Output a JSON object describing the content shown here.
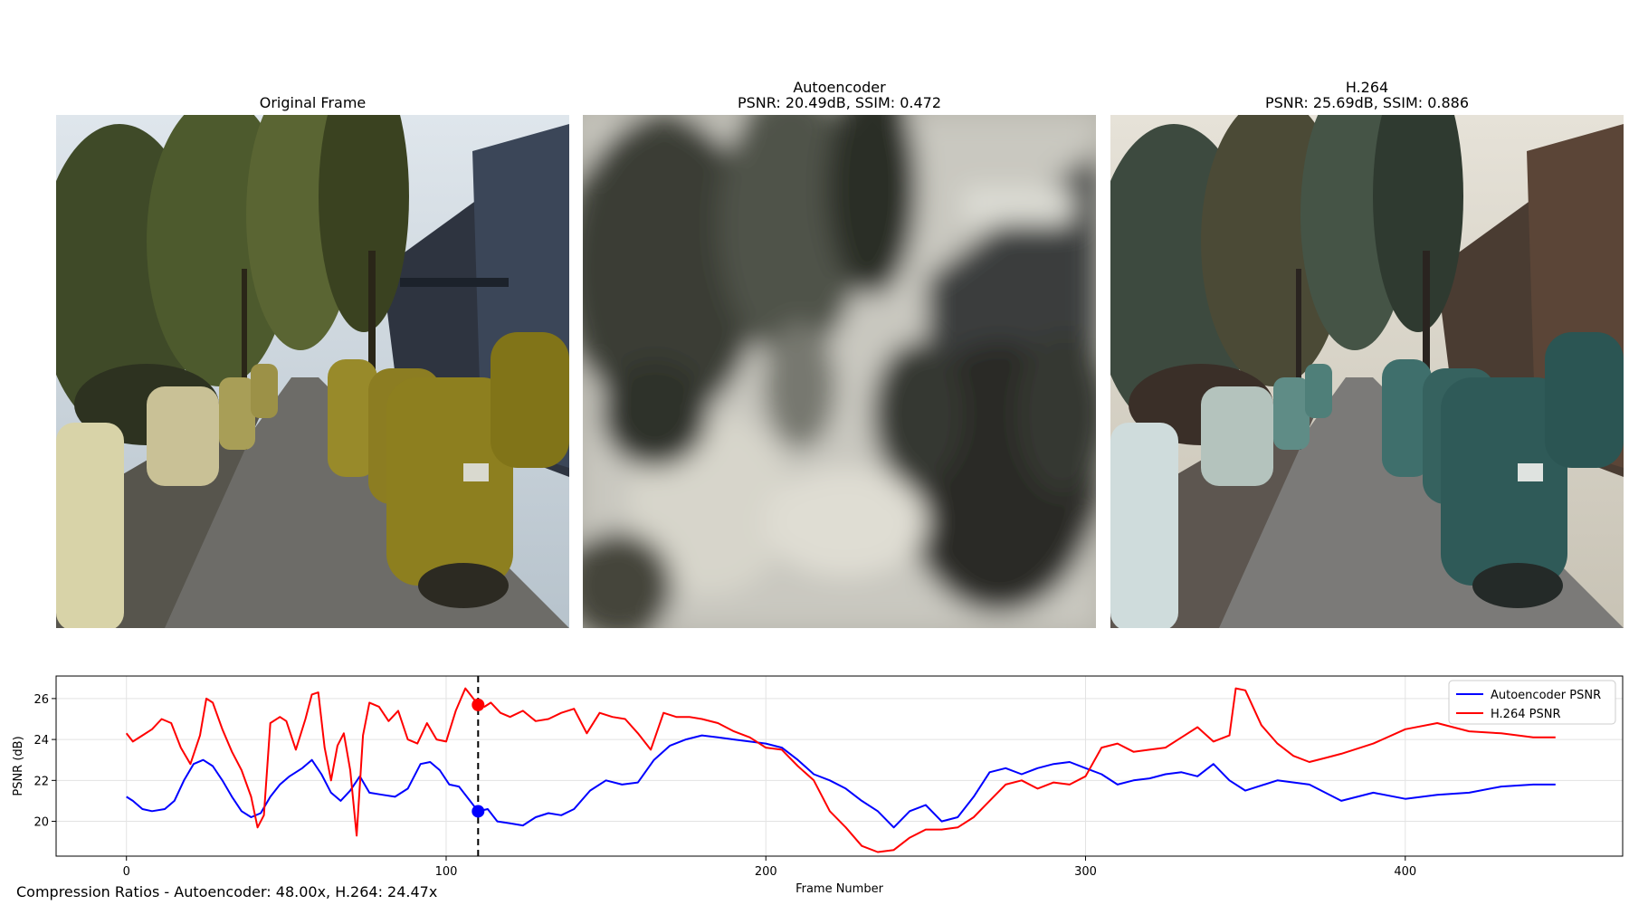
{
  "panels": {
    "original": {
      "title": "Original Frame"
    },
    "autoencoder": {
      "title": "Autoencoder",
      "metrics": "PSNR: 20.49dB, SSIM: 0.472"
    },
    "h264": {
      "title": "H.264",
      "metrics": "PSNR: 25.69dB, SSIM: 0.886"
    }
  },
  "footer": "Compression Ratios - Autoencoder: 48.00x, H.264: 24.47x",
  "colors": {
    "autoencoder": "#0000ff",
    "h264": "#ff0000",
    "marker_line": "#000000"
  },
  "chart_data": {
    "type": "line",
    "xlabel": "Frame Number",
    "ylabel": "PSNR (dB)",
    "xlim": [
      -22,
      468
    ],
    "ylim": [
      18.3,
      27.1
    ],
    "xticks": [
      0,
      100,
      200,
      300,
      400
    ],
    "yticks": [
      20,
      22,
      24,
      26
    ],
    "grid": true,
    "legend_position": "top-right",
    "current_frame": 110,
    "current_values": {
      "Autoencoder PSNR": 20.49,
      "H.264 PSNR": 25.69
    },
    "series": [
      {
        "name": "Autoencoder PSNR",
        "color": "#0000ff",
        "x": [
          0,
          2,
          5,
          8,
          12,
          15,
          18,
          21,
          24,
          27,
          30,
          33,
          36,
          39,
          42,
          45,
          48,
          51,
          55,
          58,
          61,
          64,
          67,
          70,
          73,
          76,
          80,
          84,
          88,
          92,
          95,
          98,
          101,
          104,
          107,
          110,
          113,
          116,
          120,
          124,
          128,
          132,
          136,
          140,
          145,
          150,
          155,
          160,
          165,
          170,
          175,
          180,
          185,
          190,
          195,
          200,
          205,
          210,
          215,
          220,
          225,
          230,
          235,
          240,
          245,
          250,
          255,
          260,
          265,
          270,
          275,
          280,
          285,
          290,
          295,
          300,
          305,
          310,
          315,
          320,
          325,
          330,
          335,
          340,
          345,
          350,
          360,
          370,
          380,
          390,
          400,
          410,
          420,
          430,
          440,
          447
        ],
        "values": [
          21.2,
          21.0,
          20.6,
          20.5,
          20.6,
          21.0,
          22.0,
          22.8,
          23.0,
          22.7,
          22.0,
          21.2,
          20.5,
          20.2,
          20.4,
          21.2,
          21.8,
          22.2,
          22.6,
          23.0,
          22.3,
          21.4,
          21.0,
          21.5,
          22.2,
          21.4,
          21.3,
          21.2,
          21.6,
          22.8,
          22.9,
          22.5,
          21.8,
          21.7,
          21.1,
          20.49,
          20.6,
          20.0,
          19.9,
          19.8,
          20.2,
          20.4,
          20.3,
          20.6,
          21.5,
          22.0,
          21.8,
          21.9,
          23.0,
          23.7,
          24.0,
          24.2,
          24.1,
          24.0,
          23.9,
          23.8,
          23.6,
          23.0,
          22.3,
          22.0,
          21.6,
          21.0,
          20.5,
          19.7,
          20.5,
          20.8,
          20.0,
          20.2,
          21.2,
          22.4,
          22.6,
          22.3,
          22.6,
          22.8,
          22.9,
          22.6,
          22.3,
          21.8,
          22.0,
          22.1,
          22.3,
          22.4,
          22.2,
          22.8,
          22.0,
          21.5,
          22.0,
          21.8,
          21.0,
          21.4,
          21.1,
          21.3,
          21.4,
          21.7,
          21.8,
          21.8
        ]
      },
      {
        "name": "H.264 PSNR",
        "color": "#ff0000",
        "x": [
          0,
          2,
          5,
          8,
          11,
          14,
          17,
          20,
          23,
          25,
          27,
          30,
          33,
          36,
          39,
          41,
          43,
          45,
          48,
          50,
          53,
          56,
          58,
          60,
          62,
          64,
          66,
          68,
          70,
          72,
          74,
          76,
          79,
          82,
          85,
          88,
          91,
          94,
          97,
          100,
          103,
          106,
          109,
          110,
          112,
          114,
          117,
          120,
          124,
          128,
          132,
          136,
          140,
          144,
          148,
          152,
          156,
          160,
          164,
          168,
          172,
          176,
          180,
          185,
          190,
          195,
          200,
          205,
          210,
          215,
          220,
          225,
          230,
          235,
          240,
          245,
          250,
          255,
          260,
          265,
          270,
          275,
          280,
          285,
          290,
          295,
          300,
          305,
          310,
          315,
          320,
          325,
          330,
          335,
          340,
          345,
          347,
          350,
          355,
          360,
          365,
          370,
          375,
          380,
          390,
          400,
          410,
          420,
          430,
          440,
          447
        ],
        "values": [
          24.3,
          23.9,
          24.2,
          24.5,
          25.0,
          24.8,
          23.6,
          22.8,
          24.2,
          26.0,
          25.8,
          24.5,
          23.4,
          22.5,
          21.2,
          19.7,
          20.3,
          24.8,
          25.1,
          24.9,
          23.5,
          25.0,
          26.2,
          26.3,
          23.6,
          22.0,
          23.7,
          24.3,
          22.5,
          19.3,
          24.2,
          25.8,
          25.6,
          24.9,
          25.4,
          24.0,
          23.8,
          24.8,
          24.0,
          23.9,
          25.4,
          26.5,
          25.9,
          25.69,
          25.6,
          25.8,
          25.3,
          25.1,
          25.4,
          24.9,
          25.0,
          25.3,
          25.5,
          24.3,
          25.3,
          25.1,
          25.0,
          24.3,
          23.5,
          25.3,
          25.1,
          25.1,
          25.0,
          24.8,
          24.4,
          24.1,
          23.6,
          23.5,
          22.7,
          22.0,
          20.5,
          19.7,
          18.8,
          18.5,
          18.6,
          19.2,
          19.6,
          19.6,
          19.7,
          20.2,
          21.0,
          21.8,
          22.0,
          21.6,
          21.9,
          21.8,
          22.2,
          23.6,
          23.8,
          23.4,
          23.5,
          23.6,
          24.1,
          24.6,
          23.9,
          24.2,
          26.5,
          26.4,
          24.7,
          23.8,
          23.2,
          22.9,
          23.1,
          23.3,
          23.8,
          24.5,
          24.8,
          24.4,
          24.3,
          24.1,
          24.1
        ]
      }
    ]
  }
}
